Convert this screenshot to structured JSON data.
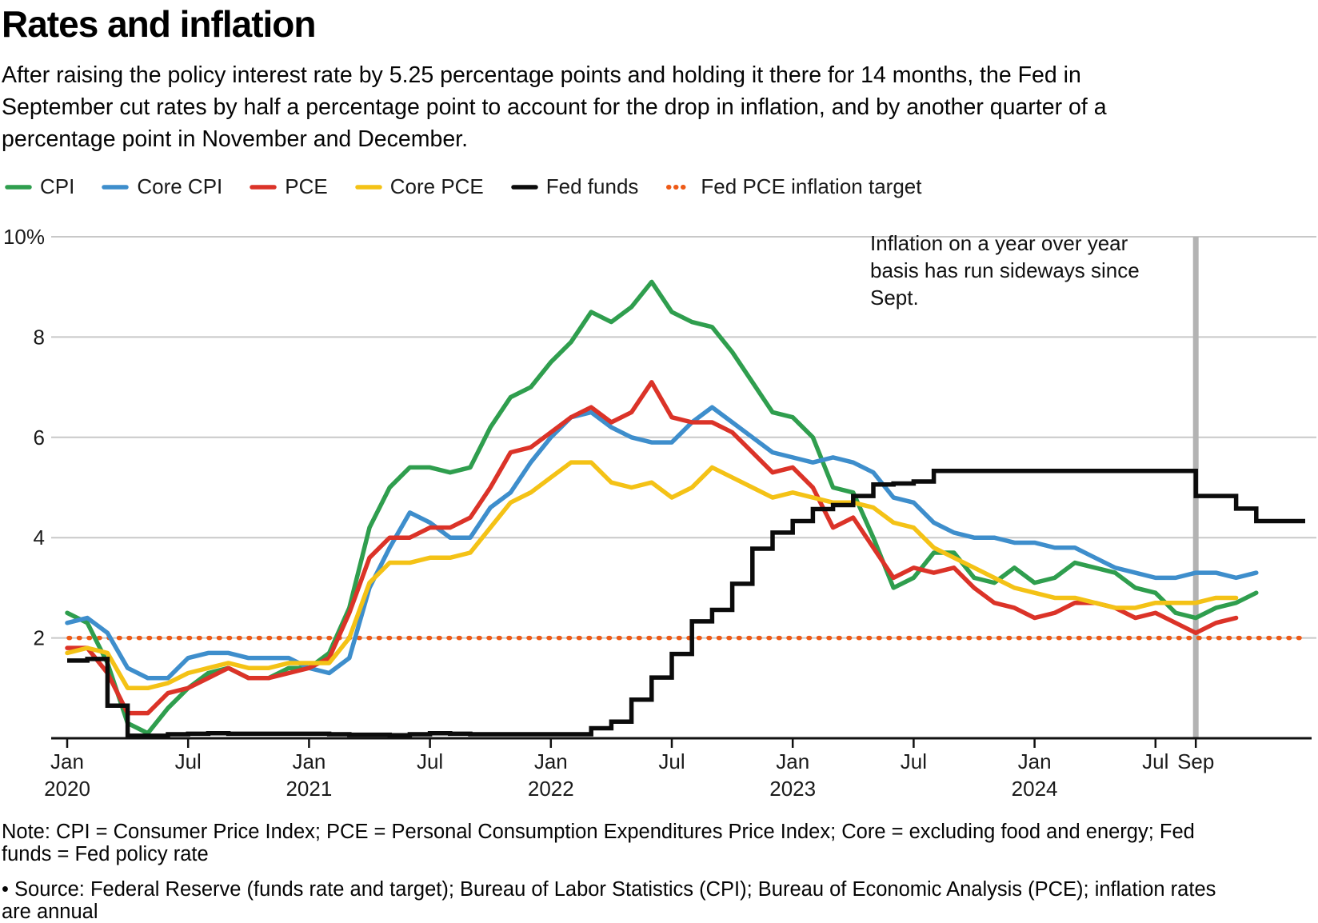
{
  "title": "Rates and inflation",
  "subtitle": "After raising the policy interest rate by 5.25 percentage points and holding it there for 14 months, the Fed in September cut rates by half a percentage point to account for the drop in inflation, and by another quarter of a percentage point in November and December.",
  "colors": {
    "cpi": "#2f9e4e",
    "core_cpi": "#3e8ecc",
    "pce": "#db3328",
    "core_pce": "#f4c216",
    "fed_funds": "#0b0b0b",
    "target": "#ee5a17",
    "gridline": "#c8c8c8",
    "event_line": "#b3b3b3",
    "axis": "#1a1a1a"
  },
  "legend": {
    "items": [
      {
        "label": "CPI",
        "color": "#2f9e4e",
        "style": "line"
      },
      {
        "label": "Core CPI",
        "color": "#3e8ecc",
        "style": "line"
      },
      {
        "label": "PCE",
        "color": "#db3328",
        "style": "line"
      },
      {
        "label": "Core PCE",
        "color": "#f4c216",
        "style": "line"
      },
      {
        "label": "Fed funds",
        "color": "#0b0b0b",
        "style": "line"
      },
      {
        "label": "Fed PCE inflation target",
        "color": "#ee5a17",
        "style": "dotted"
      }
    ]
  },
  "chart_data": {
    "type": "line",
    "x_unit": "month",
    "x_start": "Jan 2020",
    "x_end": "Dec 2024",
    "ylim": [
      0,
      10
    ],
    "grid": "horizontal",
    "legend_position": "top",
    "y_ticks": [
      {
        "value": 10,
        "label": "10%"
      },
      {
        "value": 8,
        "label": "8"
      },
      {
        "value": 6,
        "label": "6"
      },
      {
        "value": 4,
        "label": "4"
      },
      {
        "value": 2,
        "label": "2"
      }
    ],
    "x_ticks": [
      {
        "month_index": 0,
        "label": "Jan",
        "year": "2020"
      },
      {
        "month_index": 6,
        "label": "Jul",
        "year": ""
      },
      {
        "month_index": 12,
        "label": "Jan",
        "year": "2021"
      },
      {
        "month_index": 18,
        "label": "Jul",
        "year": ""
      },
      {
        "month_index": 24,
        "label": "Jan",
        "year": "2022"
      },
      {
        "month_index": 30,
        "label": "Jul",
        "year": ""
      },
      {
        "month_index": 36,
        "label": "Jan",
        "year": "2023"
      },
      {
        "month_index": 42,
        "label": "Jul",
        "year": ""
      },
      {
        "month_index": 48,
        "label": "Jan",
        "year": "2024"
      },
      {
        "month_index": 54,
        "label": "Jul",
        "year": ""
      },
      {
        "month_index": 56,
        "label": "Sep",
        "year": ""
      }
    ],
    "series": [
      {
        "name": "CPI",
        "color": "#2f9e4e",
        "type": "line",
        "values": [
          2.5,
          2.3,
          1.5,
          0.3,
          0.1,
          0.6,
          1.0,
          1.3,
          1.4,
          1.2,
          1.2,
          1.4,
          1.4,
          1.7,
          2.6,
          4.2,
          5.0,
          5.4,
          5.4,
          5.3,
          5.4,
          6.2,
          6.8,
          7.0,
          7.5,
          7.9,
          8.5,
          8.3,
          8.6,
          9.1,
          8.5,
          8.3,
          8.2,
          7.7,
          7.1,
          6.5,
          6.4,
          6.0,
          5.0,
          4.9,
          4.0,
          3.0,
          3.2,
          3.7,
          3.7,
          3.2,
          3.1,
          3.4,
          3.1,
          3.2,
          3.5,
          3.4,
          3.3,
          3.0,
          2.9,
          2.5,
          2.4,
          2.6,
          2.7,
          2.9
        ]
      },
      {
        "name": "Core CPI",
        "color": "#3e8ecc",
        "type": "line",
        "values": [
          2.3,
          2.4,
          2.1,
          1.4,
          1.2,
          1.2,
          1.6,
          1.7,
          1.7,
          1.6,
          1.6,
          1.6,
          1.4,
          1.3,
          1.6,
          3.0,
          3.8,
          4.5,
          4.3,
          4.0,
          4.0,
          4.6,
          4.9,
          5.5,
          6.0,
          6.4,
          6.5,
          6.2,
          6.0,
          5.9,
          5.9,
          6.3,
          6.6,
          6.3,
          6.0,
          5.7,
          5.6,
          5.5,
          5.6,
          5.5,
          5.3,
          4.8,
          4.7,
          4.3,
          4.1,
          4.0,
          4.0,
          3.9,
          3.9,
          3.8,
          3.8,
          3.6,
          3.4,
          3.3,
          3.2,
          3.2,
          3.3,
          3.3,
          3.2,
          3.3
        ]
      },
      {
        "name": "PCE",
        "color": "#db3328",
        "type": "line",
        "values": [
          1.8,
          1.8,
          1.3,
          0.5,
          0.5,
          0.9,
          1.0,
          1.2,
          1.4,
          1.2,
          1.2,
          1.3,
          1.4,
          1.6,
          2.5,
          3.6,
          4.0,
          4.0,
          4.2,
          4.2,
          4.4,
          5.0,
          5.7,
          5.8,
          6.1,
          6.4,
          6.6,
          6.3,
          6.5,
          7.1,
          6.4,
          6.3,
          6.3,
          6.1,
          5.7,
          5.3,
          5.4,
          5.0,
          4.2,
          4.4,
          3.8,
          3.2,
          3.4,
          3.3,
          3.4,
          3.0,
          2.7,
          2.6,
          2.4,
          2.5,
          2.7,
          2.7,
          2.6,
          2.4,
          2.5,
          2.3,
          2.1,
          2.3,
          2.4,
          null
        ]
      },
      {
        "name": "Core PCE",
        "color": "#f4c216",
        "type": "line",
        "values": [
          1.7,
          1.8,
          1.7,
          1.0,
          1.0,
          1.1,
          1.3,
          1.4,
          1.5,
          1.4,
          1.4,
          1.5,
          1.5,
          1.5,
          2.0,
          3.1,
          3.5,
          3.5,
          3.6,
          3.6,
          3.7,
          4.2,
          4.7,
          4.9,
          5.2,
          5.5,
          5.5,
          5.1,
          5.0,
          5.1,
          4.8,
          5.0,
          5.4,
          5.2,
          5.0,
          4.8,
          4.9,
          4.8,
          4.7,
          4.7,
          4.6,
          4.3,
          4.2,
          3.8,
          3.6,
          3.4,
          3.2,
          3.0,
          2.9,
          2.8,
          2.8,
          2.7,
          2.6,
          2.6,
          2.7,
          2.7,
          2.7,
          2.8,
          2.8,
          null
        ]
      },
      {
        "name": "Fed funds",
        "color": "#0b0b0b",
        "type": "step",
        "extend_to_edge": true,
        "values": [
          1.55,
          1.58,
          0.65,
          0.05,
          0.05,
          0.08,
          0.09,
          0.1,
          0.09,
          0.09,
          0.09,
          0.09,
          0.09,
          0.08,
          0.07,
          0.07,
          0.06,
          0.08,
          0.1,
          0.09,
          0.08,
          0.08,
          0.08,
          0.08,
          0.08,
          0.08,
          0.2,
          0.33,
          0.77,
          1.21,
          1.68,
          2.33,
          2.56,
          3.08,
          3.78,
          4.1,
          4.33,
          4.57,
          4.65,
          4.83,
          5.06,
          5.08,
          5.12,
          5.33,
          5.33,
          5.33,
          5.33,
          5.33,
          5.33,
          5.33,
          5.33,
          5.33,
          5.33,
          5.33,
          5.33,
          5.33,
          4.83,
          4.83,
          4.58,
          4.33
        ]
      }
    ],
    "target_line": {
      "label": "Fed PCE inflation target",
      "value": 2.0,
      "color": "#ee5a17",
      "style": "dotted"
    },
    "event_line": {
      "month_index": 56,
      "at": "Sep 2024",
      "color": "#b3b3b3"
    },
    "annotation": {
      "lines": [
        "Inflation on a year over year",
        "basis has run sideways since",
        "Sept."
      ]
    }
  },
  "footer": {
    "note": "Note: CPI = Consumer Price Index; PCE = Personal Consumption Expenditures Price Index; Core = excluding food and energy; Fed funds = Fed policy rate",
    "source": "• Source: Federal Reserve (funds rate and target); Bureau of Labor Statistics (CPI); Bureau of Economic Analysis (PCE); inflation rates are annual"
  }
}
